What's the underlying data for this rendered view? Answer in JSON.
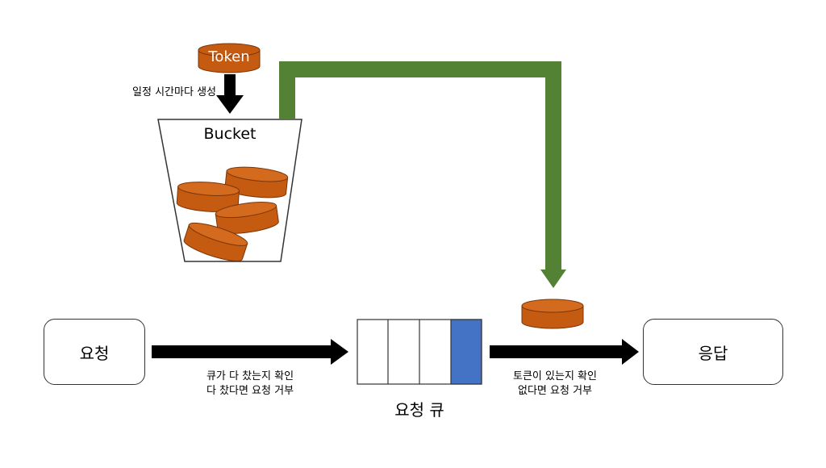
{
  "token_label": "Token",
  "token_interval_label": "일정 시간마다 생성",
  "bucket_label": "Bucket",
  "request_label": "요청",
  "response_label": "응답",
  "queue_label": "요청 큐",
  "queue_condition": {
    "line1": "큐가 다 찼는지 확인",
    "line2": "다 찼다면 요청 거부"
  },
  "token_condition": {
    "line1": "토큰이 있는지 확인",
    "line2": "없다면 요청 거부"
  },
  "colors": {
    "token_fill": "#c55a11",
    "token_top": "#d46a1e",
    "green_arrow": "#548235",
    "queue_highlight": "#4472c4",
    "arrow": "#000000"
  }
}
